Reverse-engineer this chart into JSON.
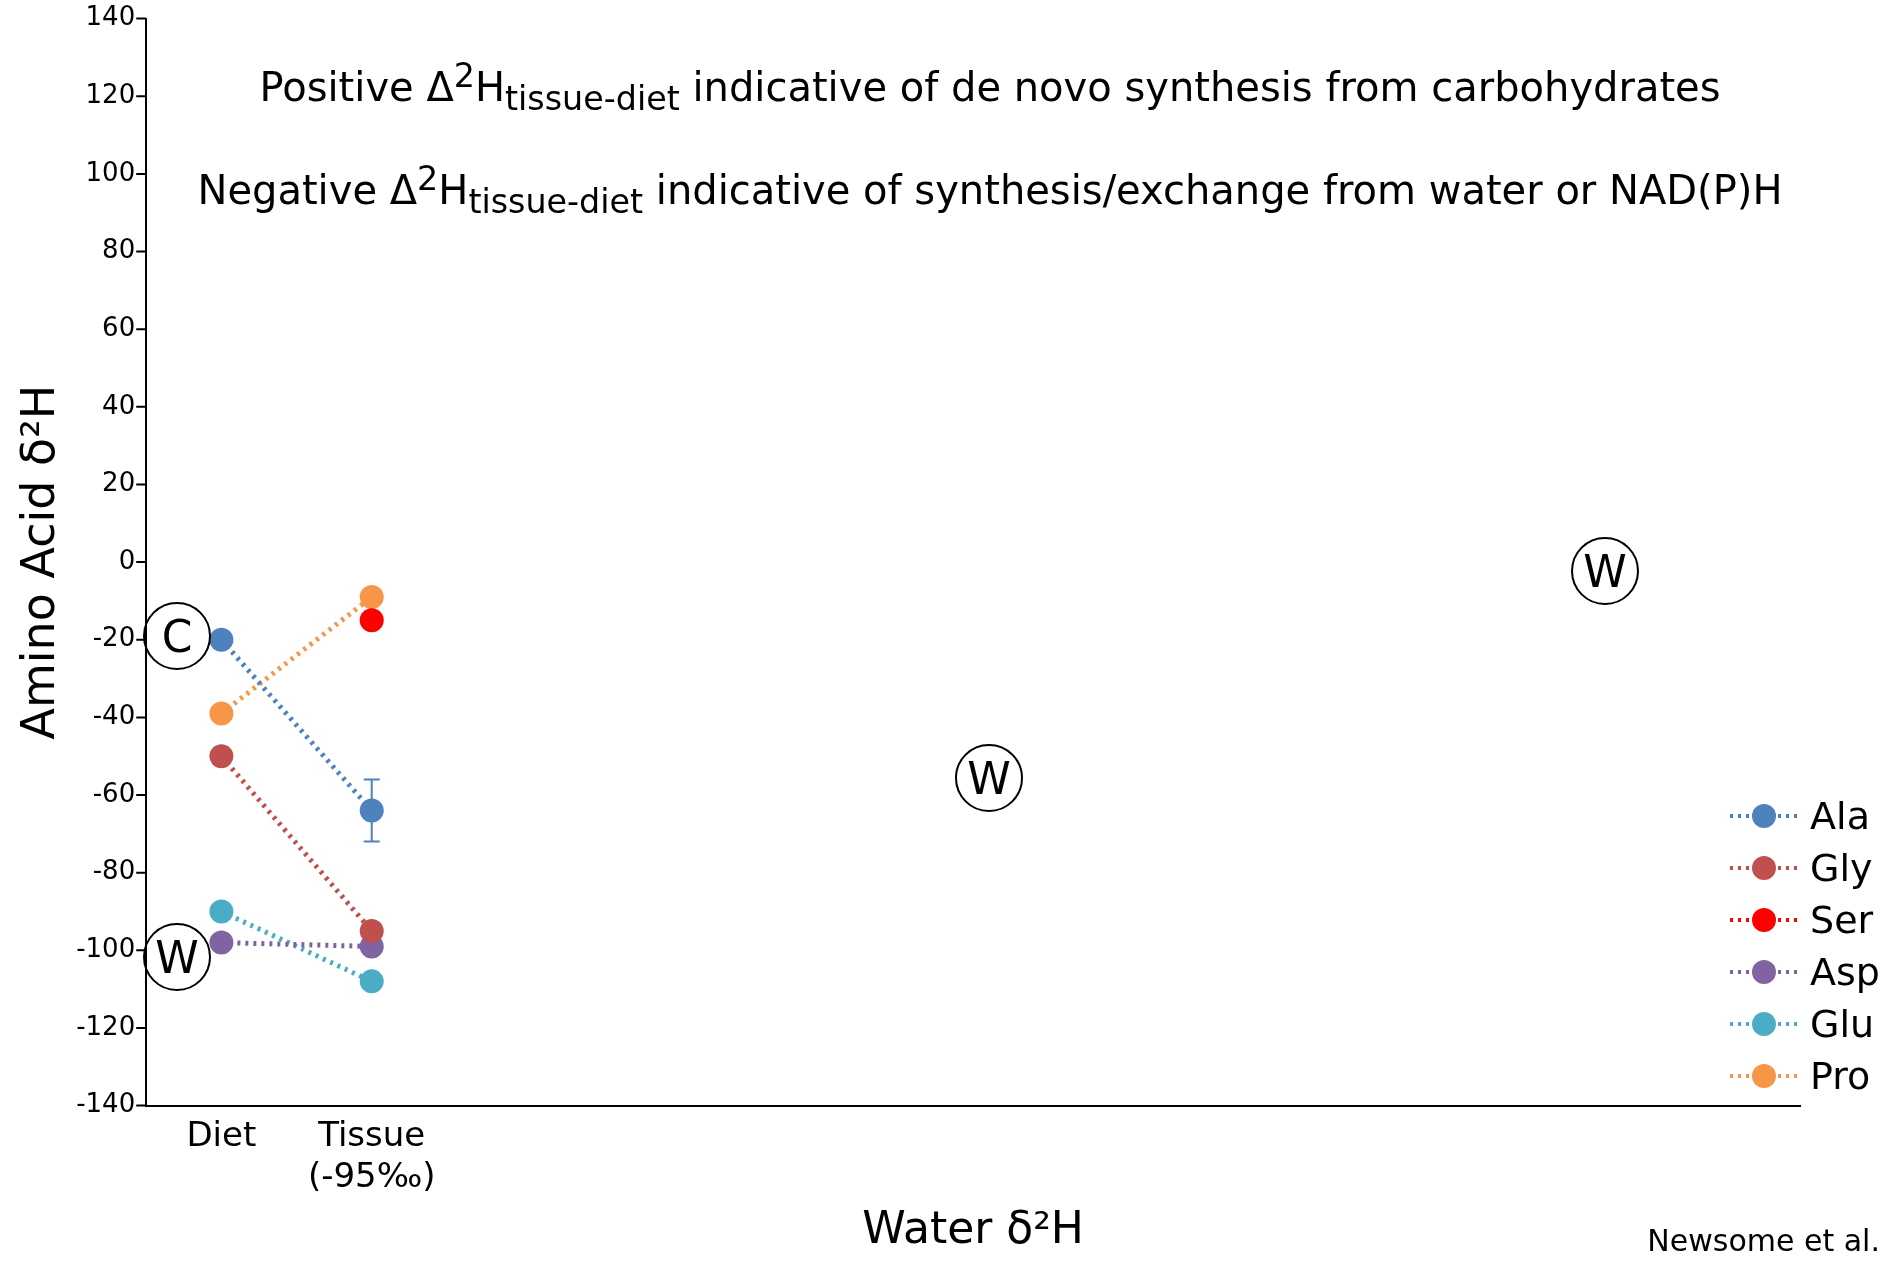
{
  "chart_data": {
    "type": "line",
    "title": "Positive Δ$^{2}$H$_{tissue-diet}$ indicative of de novo synthesis from carbohydrates",
    "subtitle": "Negative Δ$^{2}$H$_{tissue-diet}$ indicative of synthesis/exchange from water or NAD(P)H",
    "xlabel": "Water δ²H",
    "ylabel": "Amino Acid δ²H",
    "categories": [
      "Diet",
      "Tissue\n(-95‰)",
      null,
      null,
      null,
      null,
      null,
      null,
      null,
      null,
      null
    ],
    "series": [
      {
        "name": "Ala",
        "color": "#4f81bd",
        "values": [
          -20,
          -64,
          null,
          null,
          null,
          null,
          null,
          null,
          null,
          null,
          null
        ],
        "errors": [
          null,
          8,
          null,
          null,
          null,
          null,
          null,
          null,
          null,
          null,
          null
        ]
      },
      {
        "name": "Gly",
        "color": "#c0504d",
        "values": [
          -50,
          -95,
          null,
          null,
          null,
          null,
          null,
          null,
          null,
          null,
          null
        ]
      },
      {
        "name": "Ser",
        "color": "#ff0000",
        "values": [
          null,
          -15,
          null,
          null,
          null,
          null,
          null,
          null,
          null,
          null,
          null
        ]
      },
      {
        "name": "Asp",
        "color": "#8064a2",
        "values": [
          -98,
          -99,
          null,
          null,
          null,
          null,
          null,
          null,
          null,
          null,
          null
        ]
      },
      {
        "name": "Glu",
        "color": "#4bacc6",
        "values": [
          -90,
          -108,
          null,
          null,
          null,
          null,
          null,
          null,
          null,
          null,
          null
        ]
      },
      {
        "name": "Pro",
        "color": "#f79646",
        "values": [
          -39,
          -9,
          null,
          null,
          null,
          null,
          null,
          null,
          null,
          null,
          null
        ]
      }
    ],
    "ylim": [
      -140,
      140
    ],
    "yticks": [
      -140,
      -120,
      -100,
      -80,
      -60,
      -40,
      -20,
      0,
      20,
      40,
      60,
      80,
      100,
      120,
      140
    ],
    "grid": false,
    "legend": "right",
    "marker": "circle",
    "line_style": "dotted",
    "annotations": [
      "C",
      "W",
      "W",
      "W",
      "Newsome et al."
    ]
  }
}
